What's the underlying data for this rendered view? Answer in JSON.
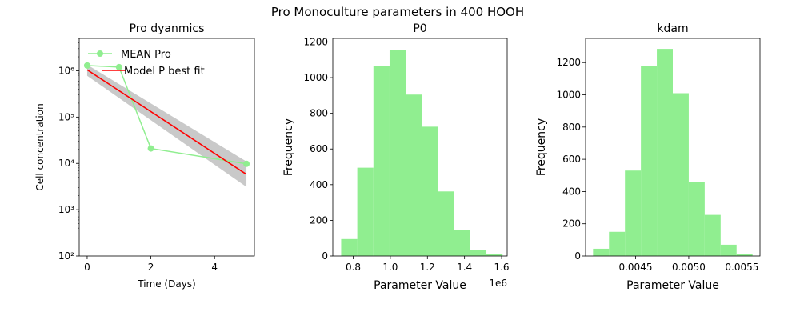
{
  "figure": {
    "suptitle": "Pro Monoculture parameters in 400 HOOH"
  },
  "chart_data": [
    {
      "type": "line",
      "title": "Pro dyanmics",
      "xlabel": "Time (Days)",
      "ylabel": "Cell concentration",
      "xlim": [
        -0.25,
        5.25
      ],
      "ylim": [
        100,
        5000000
      ],
      "yscale": "log",
      "xticks": [
        0,
        2,
        4
      ],
      "xtick_labels": [
        "0",
        "2",
        "4"
      ],
      "yticks": [
        100,
        1000,
        10000,
        100000,
        1000000
      ],
      "ytick_labels": [
        "10²",
        "10³",
        "10⁴",
        "10⁵",
        "10⁶"
      ],
      "legend_position": "top-left",
      "series": [
        {
          "name": "MEAN Pro",
          "color": "#90ee90",
          "marker": "circle",
          "x": [
            0,
            1,
            2,
            5
          ],
          "y": [
            1300000,
            1200000,
            21000,
            9800
          ]
        },
        {
          "name": "Model P best fit",
          "color": "#ff0000",
          "x": [
            0,
            5
          ],
          "y": [
            1050000,
            5800
          ]
        }
      ],
      "uncertainty_band": {
        "color": "#bbbbbb",
        "x": [
          0,
          5
        ],
        "upper": [
          1350000,
          11000
        ],
        "lower": [
          780000,
          3100
        ]
      }
    },
    {
      "type": "bar",
      "subtype": "histogram",
      "title": "P0",
      "xlabel": "Parameter Value",
      "ylabel": "Frequency",
      "color": "#90ee90",
      "offset_text": "1e6",
      "xlim": [
        0.69,
        1.63
      ],
      "ylim": [
        0,
        1220
      ],
      "xticks": [
        0.8,
        1.0,
        1.2,
        1.4,
        1.6
      ],
      "xtick_labels": [
        "0.8",
        "1.0",
        "1.2",
        "1.4",
        "1.6"
      ],
      "yticks": [
        0,
        200,
        400,
        600,
        800,
        1000,
        1200
      ],
      "bin_edges": [
        0.735,
        0.822,
        0.909,
        0.996,
        1.083,
        1.17,
        1.257,
        1.344,
        1.431,
        1.518,
        1.605
      ],
      "values": [
        95,
        495,
        1065,
        1155,
        905,
        725,
        362,
        148,
        35,
        12
      ]
    },
    {
      "type": "bar",
      "subtype": "histogram",
      "title": "kdam",
      "xlabel": "Parameter Value",
      "ylabel": "Frequency",
      "color": "#90ee90",
      "xlim": [
        0.00403,
        0.00567
      ],
      "ylim": [
        0,
        1350
      ],
      "xticks": [
        0.0045,
        0.005,
        0.0055
      ],
      "xtick_labels": [
        "0.0045",
        "0.0050",
        "0.0055"
      ],
      "yticks": [
        0,
        200,
        400,
        600,
        800,
        1000,
        1200
      ],
      "bin_edges": [
        0.0041,
        0.00425,
        0.0044,
        0.00455,
        0.0047,
        0.00485,
        0.005,
        0.00515,
        0.0053,
        0.00545,
        0.0056
      ],
      "values": [
        45,
        150,
        530,
        1180,
        1285,
        1010,
        460,
        255,
        70,
        10
      ]
    }
  ]
}
